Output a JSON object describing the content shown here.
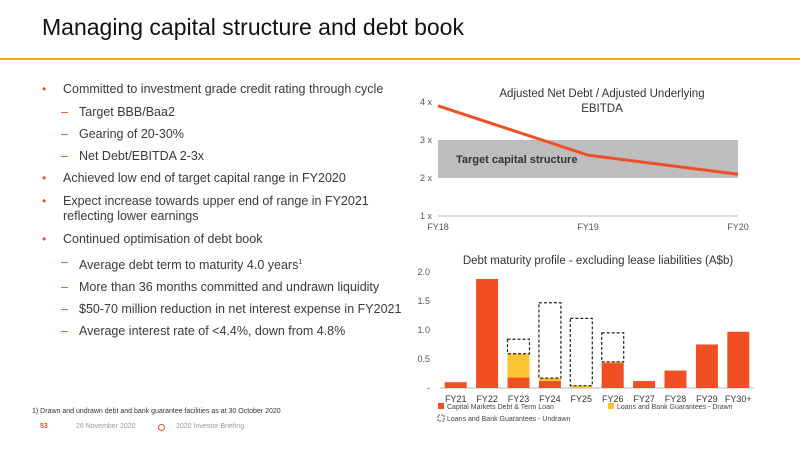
{
  "slide": {
    "title": "Managing capital structure and debt book",
    "footnote": "1) Drawn and undrawn debt and bank guarantee facilities as at 30 October 2020",
    "page_number": "53",
    "date": "26 November 2020",
    "event": "2020 Investor Briefing"
  },
  "bullets": [
    {
      "text": "Committed to investment grade credit rating through cycle",
      "subs": [
        {
          "text": "Target BBB/Baa2"
        },
        {
          "text": "Gearing of 20-30%"
        },
        {
          "text": "Net Debt/EBITDA 2-3x"
        }
      ]
    },
    {
      "text": "Achieved low end of target capital range in FY2020",
      "subs": []
    },
    {
      "text": "Expect increase towards upper end of range in FY2021 reflecting lower earnings",
      "subs": []
    },
    {
      "text": "Continued optimisation of debt book",
      "subs": [
        {
          "text": "Average debt term to maturity 4.0 years",
          "sup": "1"
        },
        {
          "text": "More than 36 months committed and undrawn liquidity"
        },
        {
          "text": "$50-70 million reduction in net interest expense in FY2021"
        },
        {
          "text": "Average interest rate of <4.4%, down from 4.8%"
        }
      ]
    }
  ],
  "colors": {
    "accent": "#f04e23",
    "gold": "#f4a81d",
    "band": "#bdbdbd",
    "drawn": "#fdc433"
  },
  "chart_data": [
    {
      "type": "line",
      "title": "Adjusted Net Debt / Adjusted Underlying EBITDA",
      "categories": [
        "FY18",
        "FY19",
        "FY20"
      ],
      "values": [
        3.9,
        2.6,
        2.1
      ],
      "ylim": [
        1,
        4
      ],
      "yticks": [
        "1 x",
        "2 x",
        "3 x",
        "4 x"
      ],
      "band": {
        "label": "Target capital structure",
        "from": 2,
        "to": 3
      }
    },
    {
      "type": "bar",
      "title": "Debt maturity profile - excluding lease liabilities (A$b)",
      "categories": [
        "FY21",
        "FY22",
        "FY23",
        "FY24",
        "FY25",
        "FY26",
        "FY27",
        "FY28",
        "FY29",
        "FY30+"
      ],
      "yticks": [
        "-",
        "0.5",
        "1.0",
        "1.5",
        "2.0"
      ],
      "ylim": [
        0,
        2.0
      ],
      "series": [
        {
          "name": "Capital Markets Debt & Term Loan",
          "values": [
            0.1,
            1.88,
            0.18,
            0.12,
            0.0,
            0.43,
            0.12,
            0.3,
            0.75,
            0.97
          ]
        },
        {
          "name": "Loans and Bank Guarantees - Drawn",
          "values": [
            0.0,
            0.0,
            0.41,
            0.05,
            0.04,
            0.02,
            0.0,
            0.0,
            0.0,
            0.0
          ]
        },
        {
          "name": "Loans and Bank Guarantees - Undrawn",
          "values": [
            0.0,
            0.0,
            0.25,
            1.3,
            1.16,
            0.5,
            0.0,
            0.0,
            0.0,
            0.0
          ]
        }
      ]
    }
  ]
}
